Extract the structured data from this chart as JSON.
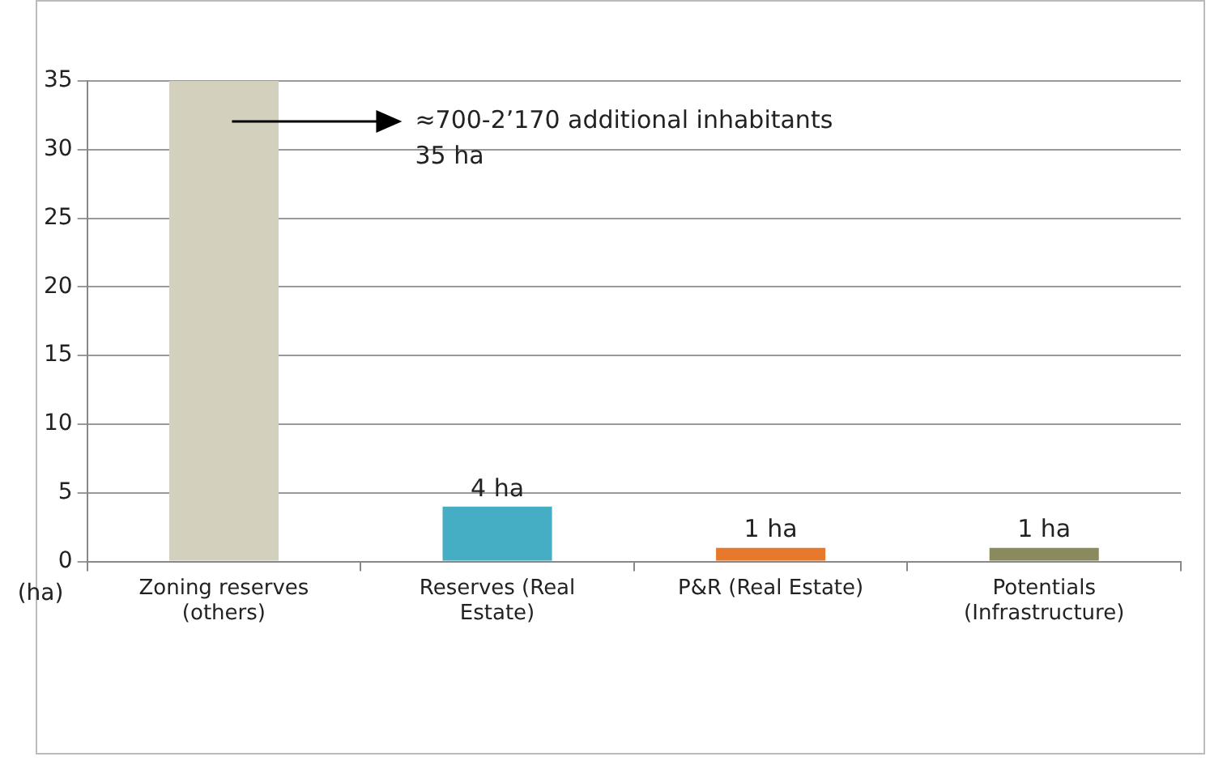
{
  "chart_data": {
    "type": "bar",
    "ylabel": "(ha)",
    "categories": [
      "Zoning reserves (others)",
      "Reserves (Real Estate)",
      "P&R (Real Estate)",
      "Potentials (Infrastructure)"
    ],
    "values": [
      35,
      4,
      1,
      1
    ],
    "colors": [
      "#d3d1bd",
      "#45adc4",
      "#e8782c",
      "#8a8a5e"
    ],
    "value_labels": [
      null,
      "4 ha",
      "1 ha",
      "1 ha"
    ],
    "annotations": [
      "≈700-2’170 additional inhabitants",
      "35 ha"
    ],
    "ylim": [
      0,
      35
    ],
    "yticks": [
      0,
      5,
      10,
      15,
      20,
      25,
      30,
      35
    ],
    "grid": "y",
    "legend": false
  }
}
